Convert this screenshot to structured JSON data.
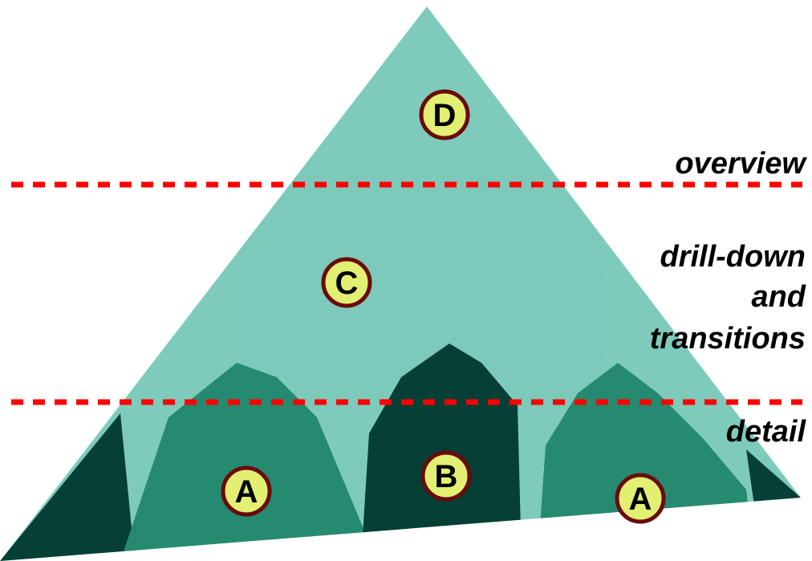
{
  "colors": {
    "light": "#7ecbbc",
    "mid": "#258a70",
    "dark": "#053f35",
    "divider": "#ff0000",
    "marker_fill": "#e2ef72",
    "marker_stroke": "#6a0a0a",
    "text": "#000000"
  },
  "labels": {
    "overview": "overview",
    "drill_down": "drill-down",
    "and": "and",
    "transitions": "transitions",
    "detail": "detail"
  },
  "markers": {
    "d": "D",
    "c": "C",
    "b": "B",
    "a_left": "A",
    "a_right": "A"
  }
}
